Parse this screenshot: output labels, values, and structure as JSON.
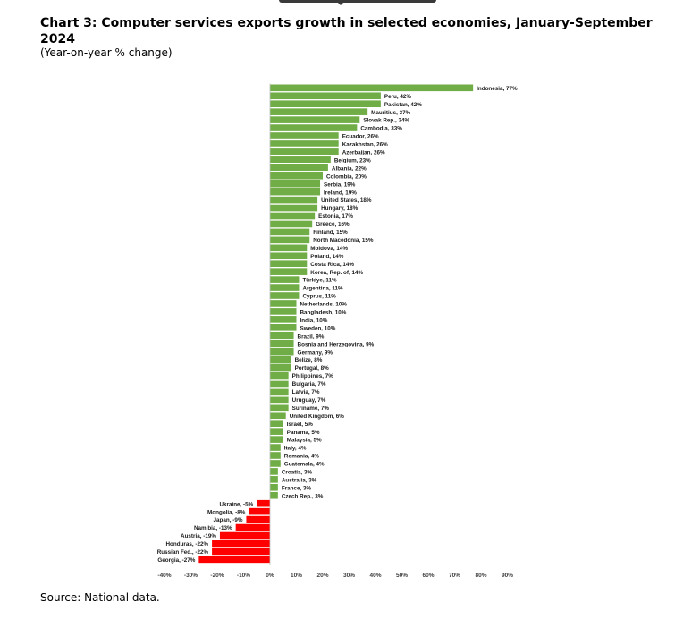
{
  "chart_data": {
    "type": "bar",
    "orientation": "horizontal",
    "title": "Chart 3: Computer services exports growth in selected economies, January-September 2024",
    "subtitle": "(Year-on-year % change)",
    "source": "Source: National data.",
    "xlim": [
      -40,
      90
    ],
    "xticks": [
      "-40%",
      "-30%",
      "-20%",
      "-10%",
      "0%",
      "10%",
      "20%",
      "30%",
      "40%",
      "50%",
      "60%",
      "70%",
      "80%",
      "90%"
    ],
    "positive_color": "#70ad47",
    "negative_color": "#ff0000",
    "bars": [
      {
        "label": "Indonesia, 77%",
        "value": 77
      },
      {
        "label": "Peru, 42%",
        "value": 42
      },
      {
        "label": "Pakistan, 42%",
        "value": 42
      },
      {
        "label": "Mauritius, 37%",
        "value": 37
      },
      {
        "label": "Slovak Rep., 34%",
        "value": 34
      },
      {
        "label": "Cambodia, 33%",
        "value": 33
      },
      {
        "label": "Ecuador, 26%",
        "value": 26
      },
      {
        "label": "Kazakhstan, 26%",
        "value": 26
      },
      {
        "label": "Azerbaijan, 26%",
        "value": 26
      },
      {
        "label": "Belgium, 23%",
        "value": 23
      },
      {
        "label": "Albania, 22%",
        "value": 22
      },
      {
        "label": "Colombia, 20%",
        "value": 20
      },
      {
        "label": "Serbia, 19%",
        "value": 19
      },
      {
        "label": "Ireland, 19%",
        "value": 19
      },
      {
        "label": "United States, 18%",
        "value": 18
      },
      {
        "label": "Hungary, 18%",
        "value": 18
      },
      {
        "label": "Estonia, 17%",
        "value": 17
      },
      {
        "label": "Greece, 16%",
        "value": 16
      },
      {
        "label": "Finland, 15%",
        "value": 15
      },
      {
        "label": "North Macedonia, 15%",
        "value": 15
      },
      {
        "label": "Moldova, 14%",
        "value": 14
      },
      {
        "label": "Poland, 14%",
        "value": 14
      },
      {
        "label": "Costa Rica, 14%",
        "value": 14
      },
      {
        "label": "Korea, Rep. of, 14%",
        "value": 14
      },
      {
        "label": "Türkiye, 11%",
        "value": 11
      },
      {
        "label": "Argentina, 11%",
        "value": 11
      },
      {
        "label": "Cyprus, 11%",
        "value": 11
      },
      {
        "label": "Netherlands, 10%",
        "value": 10
      },
      {
        "label": "Bangladesh, 10%",
        "value": 10
      },
      {
        "label": "India, 10%",
        "value": 10
      },
      {
        "label": "Sweden, 10%",
        "value": 10
      },
      {
        "label": "Brazil, 9%",
        "value": 9
      },
      {
        "label": "Bosnia and Herzegovina, 9%",
        "value": 9
      },
      {
        "label": "Germany, 9%",
        "value": 9
      },
      {
        "label": "Belize, 8%",
        "value": 8
      },
      {
        "label": "Portugal, 8%",
        "value": 8
      },
      {
        "label": "Philippines, 7%",
        "value": 7
      },
      {
        "label": "Bulgaria, 7%",
        "value": 7
      },
      {
        "label": "Latvia, 7%",
        "value": 7
      },
      {
        "label": "Uruguay, 7%",
        "value": 7
      },
      {
        "label": "Suriname, 7%",
        "value": 7
      },
      {
        "label": "United Kingdom, 6%",
        "value": 6
      },
      {
        "label": "Israel, 5%",
        "value": 5
      },
      {
        "label": "Panama, 5%",
        "value": 5
      },
      {
        "label": "Malaysia, 5%",
        "value": 5
      },
      {
        "label": "Italy, 4%",
        "value": 4
      },
      {
        "label": "Romania, 4%",
        "value": 4
      },
      {
        "label": "Guatemala, 4%",
        "value": 4
      },
      {
        "label": "Croatia, 3%",
        "value": 3
      },
      {
        "label": "Australia, 3%",
        "value": 3
      },
      {
        "label": "France, 3%",
        "value": 3
      },
      {
        "label": "Czech Rep., 3%",
        "value": 3
      },
      {
        "label": "Ukraine, -5%",
        "value": -5
      },
      {
        "label": "Mongolia, -8%",
        "value": -8
      },
      {
        "label": "Japan, -9%",
        "value": -9
      },
      {
        "label": "Namibia, -13%",
        "value": -13
      },
      {
        "label": "Austria, -19%",
        "value": -19
      },
      {
        "label": "Honduras, -22%",
        "value": -22
      },
      {
        "label": "Russian Fed., -22%",
        "value": -22
      },
      {
        "label": "Georgia, -27%",
        "value": -27
      }
    ]
  }
}
